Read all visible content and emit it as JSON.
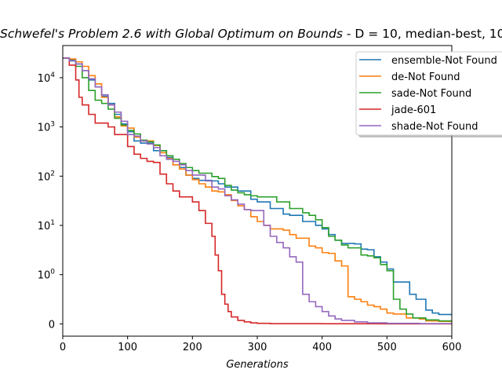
{
  "chart_data": {
    "type": "line",
    "title_math": "Schwefel's Problem 2.6 with Global Optimum on Bounds",
    "title_rest": " - D = 10, median-best, 10",
    "xlabel": "Generations",
    "ylabel": "",
    "xlim": [
      0,
      600
    ],
    "ylim": [
      -0.25,
      45000
    ],
    "yscale": "symlog",
    "yscale_linthresh": 1,
    "xticks": [
      0,
      100,
      200,
      300,
      400,
      500,
      600
    ],
    "xtick_labels": [
      "0",
      "100",
      "200",
      "300",
      "400",
      "500",
      "600"
    ],
    "yticks": [
      0,
      1,
      10,
      100,
      1000,
      10000
    ],
    "ytick_labels": [
      {
        "base": "0",
        "exp": ""
      },
      {
        "base": "10",
        "exp": "0"
      },
      {
        "base": "10",
        "exp": "1"
      },
      {
        "base": "10",
        "exp": "2"
      },
      {
        "base": "10",
        "exp": "3"
      },
      {
        "base": "10",
        "exp": "4"
      }
    ],
    "grid": false,
    "legend_position": "top-right",
    "series": [
      {
        "name": "ensemble-Not Found",
        "color": "#1f77b4",
        "points": [
          [
            0,
            25000
          ],
          [
            10,
            23000
          ],
          [
            20,
            19000
          ],
          [
            30,
            14000
          ],
          [
            40,
            9000
          ],
          [
            50,
            6500
          ],
          [
            60,
            4200
          ],
          [
            70,
            3000
          ],
          [
            80,
            1800
          ],
          [
            90,
            1150
          ],
          [
            100,
            800
          ],
          [
            110,
            520
          ],
          [
            120,
            470
          ],
          [
            140,
            330
          ],
          [
            160,
            240
          ],
          [
            170,
            170
          ],
          [
            180,
            150
          ],
          [
            190,
            105
          ],
          [
            200,
            90
          ],
          [
            210,
            82
          ],
          [
            230,
            80
          ],
          [
            240,
            70
          ],
          [
            250,
            60
          ],
          [
            270,
            50
          ],
          [
            290,
            34
          ],
          [
            300,
            30
          ],
          [
            320,
            22
          ],
          [
            340,
            17
          ],
          [
            350,
            16
          ],
          [
            370,
            12
          ],
          [
            390,
            10
          ],
          [
            400,
            8.5
          ],
          [
            410,
            6.5
          ],
          [
            420,
            5
          ],
          [
            430,
            4.3
          ],
          [
            450,
            4.2
          ],
          [
            460,
            3.3
          ],
          [
            470,
            3.2
          ],
          [
            480,
            2.3
          ],
          [
            490,
            1.8
          ],
          [
            500,
            1.3
          ],
          [
            510,
            0.85
          ],
          [
            525,
            0.85
          ],
          [
            535,
            0.6
          ],
          [
            545,
            0.5
          ],
          [
            560,
            0.28
          ],
          [
            570,
            0.22
          ],
          [
            580,
            0.19
          ],
          [
            600,
            0.17
          ]
        ]
      },
      {
        "name": "de-Not Found",
        "color": "#ff7f0e",
        "points": [
          [
            0,
            25000
          ],
          [
            10,
            24000
          ],
          [
            20,
            21000
          ],
          [
            30,
            17000
          ],
          [
            40,
            11000
          ],
          [
            50,
            7500
          ],
          [
            60,
            4000
          ],
          [
            70,
            2800
          ],
          [
            80,
            1600
          ],
          [
            90,
            1050
          ],
          [
            100,
            950
          ],
          [
            110,
            620
          ],
          [
            120,
            520
          ],
          [
            140,
            420
          ],
          [
            150,
            300
          ],
          [
            160,
            230
          ],
          [
            170,
            170
          ],
          [
            180,
            140
          ],
          [
            190,
            105
          ],
          [
            200,
            85
          ],
          [
            210,
            70
          ],
          [
            220,
            60
          ],
          [
            230,
            50
          ],
          [
            240,
            48
          ],
          [
            250,
            42
          ],
          [
            260,
            32
          ],
          [
            270,
            25
          ],
          [
            280,
            21
          ],
          [
            290,
            15
          ],
          [
            300,
            12
          ],
          [
            310,
            10
          ],
          [
            320,
            8.5
          ],
          [
            340,
            8
          ],
          [
            350,
            6.5
          ],
          [
            360,
            5.5
          ],
          [
            380,
            3.8
          ],
          [
            390,
            3.5
          ],
          [
            400,
            2.8
          ],
          [
            410,
            2.7
          ],
          [
            420,
            1.9
          ],
          [
            430,
            1.5
          ],
          [
            440,
            0.55
          ],
          [
            450,
            0.5
          ],
          [
            460,
            0.45
          ],
          [
            470,
            0.38
          ],
          [
            480,
            0.35
          ],
          [
            490,
            0.3
          ],
          [
            500,
            0.22
          ],
          [
            510,
            0.2
          ],
          [
            530,
            0.12
          ],
          [
            550,
            0.1
          ],
          [
            560,
            0.06
          ],
          [
            580,
            0.05
          ],
          [
            600,
            0.03
          ]
        ]
      },
      {
        "name": "sade-Not Found",
        "color": "#2ca02c",
        "points": [
          [
            0,
            25000
          ],
          [
            10,
            22000
          ],
          [
            20,
            17000
          ],
          [
            30,
            10000
          ],
          [
            40,
            5500
          ],
          [
            50,
            3500
          ],
          [
            60,
            3000
          ],
          [
            70,
            2300
          ],
          [
            80,
            1500
          ],
          [
            90,
            1100
          ],
          [
            100,
            850
          ],
          [
            110,
            720
          ],
          [
            120,
            540
          ],
          [
            130,
            500
          ],
          [
            140,
            430
          ],
          [
            150,
            330
          ],
          [
            160,
            260
          ],
          [
            170,
            220
          ],
          [
            180,
            180
          ],
          [
            190,
            150
          ],
          [
            200,
            130
          ],
          [
            210,
            115
          ],
          [
            230,
            98
          ],
          [
            240,
            90
          ],
          [
            250,
            65
          ],
          [
            260,
            52
          ],
          [
            270,
            46
          ],
          [
            280,
            42
          ],
          [
            290,
            40
          ],
          [
            300,
            38
          ],
          [
            330,
            30
          ],
          [
            350,
            22
          ],
          [
            370,
            18
          ],
          [
            380,
            16
          ],
          [
            390,
            13
          ],
          [
            400,
            9
          ],
          [
            410,
            6
          ],
          [
            420,
            5
          ],
          [
            430,
            4
          ],
          [
            440,
            3.5
          ],
          [
            460,
            2.5
          ],
          [
            470,
            2.4
          ],
          [
            480,
            2.2
          ],
          [
            490,
            1.6
          ],
          [
            500,
            1.2
          ],
          [
            510,
            0.5
          ],
          [
            520,
            0.3
          ],
          [
            530,
            0.2
          ],
          [
            540,
            0.12
          ],
          [
            560,
            0.08
          ],
          [
            580,
            0.06
          ],
          [
            600,
            0.05
          ]
        ]
      },
      {
        "name": "jade-601",
        "color": "#d62728",
        "points": [
          [
            0,
            25000
          ],
          [
            10,
            18000
          ],
          [
            20,
            9000
          ],
          [
            25,
            4000
          ],
          [
            30,
            2800
          ],
          [
            40,
            1800
          ],
          [
            50,
            1200
          ],
          [
            70,
            1000
          ],
          [
            80,
            700
          ],
          [
            100,
            400
          ],
          [
            110,
            280
          ],
          [
            120,
            230
          ],
          [
            130,
            200
          ],
          [
            140,
            190
          ],
          [
            150,
            110
          ],
          [
            160,
            70
          ],
          [
            170,
            50
          ],
          [
            180,
            38
          ],
          [
            200,
            30
          ],
          [
            210,
            20
          ],
          [
            220,
            11
          ],
          [
            230,
            6
          ],
          [
            235,
            2.5
          ],
          [
            240,
            1.2
          ],
          [
            245,
            0.6
          ],
          [
            250,
            0.4
          ],
          [
            255,
            0.25
          ],
          [
            260,
            0.14
          ],
          [
            270,
            0.07
          ],
          [
            280,
            0.04
          ],
          [
            290,
            0.02
          ],
          [
            300,
            0.01
          ],
          [
            320,
            0.005
          ],
          [
            400,
            0.002
          ],
          [
            500,
            0.001
          ],
          [
            600,
            0.0005
          ]
        ]
      },
      {
        "name": "shade-Not Found",
        "color": "#9467bd",
        "points": [
          [
            0,
            25000
          ],
          [
            10,
            22000
          ],
          [
            20,
            19000
          ],
          [
            30,
            14000
          ],
          [
            40,
            9500
          ],
          [
            50,
            6500
          ],
          [
            60,
            4500
          ],
          [
            70,
            2800
          ],
          [
            80,
            2000
          ],
          [
            90,
            1300
          ],
          [
            100,
            700
          ],
          [
            110,
            650
          ],
          [
            120,
            520
          ],
          [
            130,
            450
          ],
          [
            140,
            380
          ],
          [
            150,
            260
          ],
          [
            160,
            220
          ],
          [
            170,
            200
          ],
          [
            180,
            170
          ],
          [
            190,
            130
          ],
          [
            200,
            105
          ],
          [
            220,
            80
          ],
          [
            230,
            60
          ],
          [
            240,
            55
          ],
          [
            250,
            40
          ],
          [
            260,
            33
          ],
          [
            270,
            27
          ],
          [
            280,
            21
          ],
          [
            290,
            20
          ],
          [
            300,
            20
          ],
          [
            310,
            10
          ],
          [
            320,
            6
          ],
          [
            330,
            4.5
          ],
          [
            340,
            3.5
          ],
          [
            350,
            2.3
          ],
          [
            360,
            1.8
          ],
          [
            370,
            0.6
          ],
          [
            380,
            0.45
          ],
          [
            390,
            0.35
          ],
          [
            400,
            0.25
          ],
          [
            410,
            0.16
          ],
          [
            420,
            0.1
          ],
          [
            430,
            0.07
          ],
          [
            450,
            0.04
          ],
          [
            470,
            0.02
          ],
          [
            500,
            0.01
          ],
          [
            550,
            0.005
          ],
          [
            600,
            0.003
          ]
        ]
      }
    ]
  }
}
